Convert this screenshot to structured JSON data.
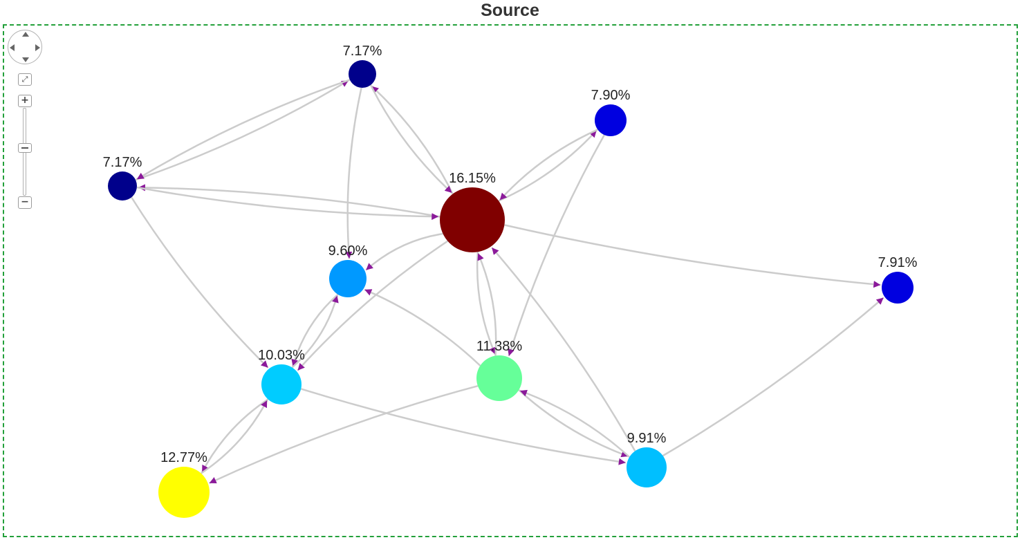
{
  "title": "Source",
  "colors": {
    "frame": "#22a03a",
    "edge": "#cccccc",
    "arrow": "#8b1a9a"
  },
  "nodes": [
    {
      "id": "n1",
      "label": "7.17%",
      "color": "#00008b"
    },
    {
      "id": "n2",
      "label": "7.90%",
      "color": "#0000e0"
    },
    {
      "id": "n3",
      "label": "7.17%",
      "color": "#00008b"
    },
    {
      "id": "n4",
      "label": "16.15%",
      "color": "#800000"
    },
    {
      "id": "n5",
      "label": "9.60%",
      "color": "#0099ff"
    },
    {
      "id": "n6",
      "label": "7.91%",
      "color": "#0000e0"
    },
    {
      "id": "n7",
      "label": "10.03%",
      "color": "#00ccff"
    },
    {
      "id": "n8",
      "label": "11.38%",
      "color": "#66ff99"
    },
    {
      "id": "n9",
      "label": "9.91%",
      "color": "#00bfff"
    },
    {
      "id": "n10",
      "label": "12.77%",
      "color": "#ffff00"
    }
  ],
  "edges": [
    {
      "from": "n3",
      "to": "n1"
    },
    {
      "from": "n1",
      "to": "n3"
    },
    {
      "from": "n4",
      "to": "n3"
    },
    {
      "from": "n3",
      "to": "n4"
    },
    {
      "from": "n4",
      "to": "n1"
    },
    {
      "from": "n1",
      "to": "n4"
    },
    {
      "from": "n1",
      "to": "n5"
    },
    {
      "from": "n4",
      "to": "n2"
    },
    {
      "from": "n2",
      "to": "n4"
    },
    {
      "from": "n2",
      "to": "n8"
    },
    {
      "from": "n4",
      "to": "n5"
    },
    {
      "from": "n4",
      "to": "n6"
    },
    {
      "from": "n4",
      "to": "n7"
    },
    {
      "from": "n4",
      "to": "n8"
    },
    {
      "from": "n8",
      "to": "n4"
    },
    {
      "from": "n9",
      "to": "n4"
    },
    {
      "from": "n3",
      "to": "n7"
    },
    {
      "from": "n5",
      "to": "n7"
    },
    {
      "from": "n7",
      "to": "n5"
    },
    {
      "from": "n8",
      "to": "n5"
    },
    {
      "from": "n7",
      "to": "n10"
    },
    {
      "from": "n10",
      "to": "n7"
    },
    {
      "from": "n8",
      "to": "n10"
    },
    {
      "from": "n7",
      "to": "n9"
    },
    {
      "from": "n8",
      "to": "n9"
    },
    {
      "from": "n9",
      "to": "n8"
    },
    {
      "from": "n9",
      "to": "n6"
    }
  ],
  "controls": {
    "fit_icon": "fit-arrows-icon",
    "zoom_in": "+",
    "zoom_out": "−"
  }
}
